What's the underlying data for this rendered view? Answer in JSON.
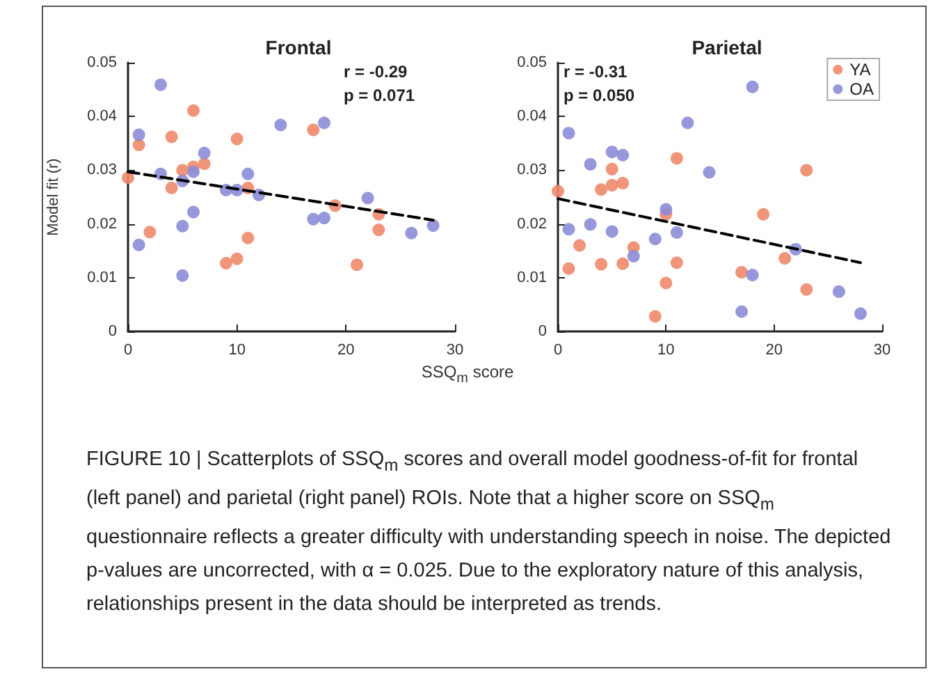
{
  "chart_data": [
    {
      "type": "scatter",
      "title": "Frontal",
      "xlabel": "SSQ$_{m}$ score",
      "ylabel": "Model fit (r)",
      "annotations": [
        "r = -0.29",
        "p = 0.071"
      ],
      "xlim": [
        0,
        30
      ],
      "xticks": [
        0,
        10,
        20,
        30
      ],
      "ylim": [
        0,
        0.05
      ],
      "yticks": [
        0,
        0.01,
        0.02,
        0.03,
        0.04,
        0.05
      ],
      "grid": false,
      "legend": false,
      "marker": "circle",
      "series": [
        {
          "color": "#f08a6b",
          "x": [
            0,
            1,
            2,
            4,
            4,
            5,
            6,
            6,
            7,
            9,
            10,
            10,
            11,
            11,
            17,
            19,
            21,
            23,
            23
          ],
          "values": [
            0.0286,
            0.0347,
            0.0185,
            0.0362,
            0.0267,
            0.03,
            0.0411,
            0.0306,
            0.0312,
            0.0127,
            0.0135,
            0.0358,
            0.0267,
            0.0174,
            0.0375,
            0.0234,
            0.0124,
            0.0218,
            0.0189
          ]
        },
        {
          "color": "#8c8cd8",
          "x": [
            1,
            1,
            3,
            3,
            5,
            5,
            5,
            6,
            6,
            7,
            9,
            10,
            11,
            12,
            14,
            17,
            18,
            18,
            22,
            26,
            28
          ],
          "values": [
            0.0366,
            0.0161,
            0.0459,
            0.0293,
            0.028,
            0.0196,
            0.0104,
            0.0297,
            0.0222,
            0.0332,
            0.0263,
            0.0263,
            0.0293,
            0.0254,
            0.0384,
            0.0209,
            0.0211,
            0.0388,
            0.0248,
            0.0183,
            0.0197
          ]
        },
        {
          "type": "line",
          "color": "#000000",
          "line_style": "dashed",
          "marker": "none",
          "x": [
            0,
            28
          ],
          "values": [
            0.0297,
            0.0207
          ]
        }
      ]
    },
    {
      "type": "scatter",
      "title": "Parietal",
      "annotations": [
        "r = -0.31",
        "p = 0.050",
        "FIGURE 10 | Scatterplots of SSQ$_{m}$ scores and overall model goodness-of-fit for frontal (left panel) and parietal (right panel) ROIs. Note that a higher score on SSQ$_{m}$ questionnaire reflects a greater difficulty with understanding speech in noise. The depicted p-values are uncorrected, with α = 0.025. Due to the exploratory nature of this analysis, relationships present in the data should be interpreted as trends."
      ],
      "xlim": [
        0,
        30
      ],
      "xticks": [
        0,
        10,
        20,
        30
      ],
      "ylim": [
        0,
        0.05
      ],
      "yticks": [
        0,
        0.01,
        0.02,
        0.03,
        0.04,
        0.05
      ],
      "grid": false,
      "legend": "top right",
      "marker": "circle",
      "series": [
        {
          "name": "YA",
          "color": "#f08a6b",
          "x": [
            0,
            1,
            2,
            4,
            4,
            5,
            5,
            6,
            6,
            7,
            9,
            10,
            10,
            11,
            11,
            17,
            19,
            21,
            23,
            23
          ],
          "values": [
            0.0261,
            0.0117,
            0.016,
            0.0264,
            0.0125,
            0.0302,
            0.0272,
            0.0276,
            0.0126,
            0.0156,
            0.0028,
            0.0218,
            0.009,
            0.0322,
            0.0128,
            0.011,
            0.0218,
            0.0136,
            0.03,
            0.0078
          ]
        },
        {
          "name": "OA",
          "color": "#8c8cd8",
          "x": [
            1,
            1,
            3,
            3,
            5,
            5,
            6,
            7,
            9,
            10,
            11,
            12,
            14,
            17,
            18,
            18,
            22,
            26,
            28
          ],
          "values": [
            0.0369,
            0.019,
            0.0311,
            0.0199,
            0.0334,
            0.0186,
            0.0328,
            0.014,
            0.0172,
            0.0227,
            0.0184,
            0.0388,
            0.0296,
            0.0037,
            0.0105,
            0.0455,
            0.0153,
            0.0074,
            0.0033
          ]
        },
        {
          "type": "line",
          "color": "#000000",
          "line_style": "dashed",
          "marker": "none",
          "x": [
            0,
            28
          ],
          "values": [
            0.0247,
            0.0128
          ]
        }
      ]
    }
  ]
}
